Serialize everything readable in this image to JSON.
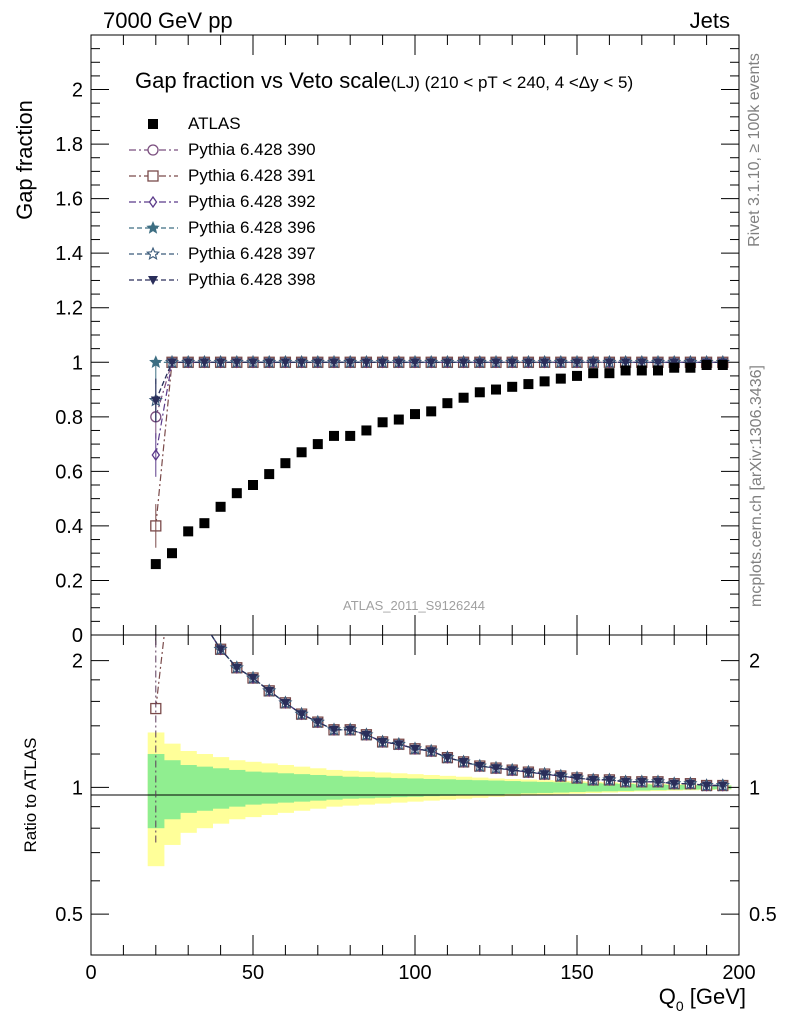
{
  "header": {
    "left": "7000 GeV pp",
    "right": "Jets"
  },
  "side": {
    "rivet": "Rivet 3.1.10, ≥ 100k events",
    "mcplots": "mcplots.cern.ch [arXiv:1306.3436]"
  },
  "watermark": "ATLAS_2011_S9126244",
  "chart_data": {
    "type": "scatter",
    "title": "Gap fraction vs Veto scale",
    "subtitle": "(LJ) (210 < pT < 240, 4 <Δy < 5)",
    "ylabel": "Gap fraction",
    "ratio_ylabel": "Ratio to ATLAS",
    "xlabel": "Q0 [GeV]",
    "xlim": [
      0,
      200
    ],
    "ylim": [
      0,
      2.2
    ],
    "ratio_ylim": [
      0.4,
      2.3
    ],
    "x_ticks": [
      "0",
      "50",
      "100",
      "150",
      "200"
    ],
    "y_ticks": [
      "0",
      "0.2",
      "0.4",
      "0.6",
      "0.8",
      "1",
      "1.2",
      "1.4",
      "1.6",
      "1.8",
      "2"
    ],
    "ratio_y_ticks": [
      "0.5",
      "1",
      "2"
    ],
    "legend_position": "top-left",
    "x": [
      20,
      25,
      30,
      35,
      40,
      45,
      50,
      55,
      60,
      65,
      70,
      75,
      80,
      85,
      90,
      95,
      100,
      105,
      110,
      115,
      120,
      125,
      130,
      135,
      140,
      145,
      150,
      155,
      160,
      165,
      170,
      175,
      180,
      185,
      190,
      195
    ],
    "data": {
      "name": "ATLAS",
      "values": [
        0.26,
        0.3,
        0.38,
        0.41,
        0.47,
        0.52,
        0.55,
        0.59,
        0.63,
        0.67,
        0.7,
        0.73,
        0.73,
        0.75,
        0.78,
        0.79,
        0.81,
        0.82,
        0.85,
        0.87,
        0.89,
        0.9,
        0.91,
        0.92,
        0.93,
        0.94,
        0.95,
        0.96,
        0.96,
        0.97,
        0.97,
        0.97,
        0.98,
        0.98,
        0.99,
        0.99
      ],
      "band_inner": [
        0.2,
        0.16,
        0.13,
        0.12,
        0.11,
        0.1,
        0.09,
        0.085,
        0.08,
        0.075,
        0.07,
        0.065,
        0.06,
        0.058,
        0.055,
        0.052,
        0.05,
        0.047,
        0.045,
        0.042,
        0.04,
        0.038,
        0.035,
        0.032,
        0.03,
        0.028,
        0.025,
        0.023,
        0.021,
        0.019,
        0.017,
        0.015,
        0.013,
        0.012,
        0.011,
        0.01
      ],
      "band_outer": [
        0.35,
        0.27,
        0.22,
        0.2,
        0.18,
        0.16,
        0.15,
        0.14,
        0.13,
        0.12,
        0.11,
        0.1,
        0.095,
        0.09,
        0.085,
        0.08,
        0.075,
        0.07,
        0.065,
        0.06,
        0.055,
        0.05,
        0.047,
        0.044,
        0.04,
        0.037,
        0.034,
        0.031,
        0.028,
        0.025,
        0.022,
        0.02,
        0.018,
        0.016,
        0.014,
        0.012
      ]
    },
    "series": [
      {
        "name": "Pythia 6.428 390",
        "color": "#7b4f7f",
        "marker": "circle-open",
        "dash": "dashdot",
        "values": [
          0.8,
          1,
          1,
          1,
          1,
          1,
          1,
          1,
          1,
          1,
          1,
          1,
          1,
          1,
          1,
          1,
          1,
          1,
          1,
          1,
          1,
          1,
          1,
          1,
          1,
          1,
          1,
          1,
          1,
          1,
          1,
          1,
          1,
          1,
          1,
          1
        ]
      },
      {
        "name": "Pythia 6.428 391",
        "color": "#7a4a4a",
        "marker": "square-open",
        "dash": "dashdot",
        "values": [
          0.4,
          1,
          1,
          1,
          1,
          1,
          1,
          1,
          1,
          1,
          1,
          1,
          1,
          1,
          1,
          1,
          1,
          1,
          1,
          1,
          1,
          1,
          1,
          1,
          1,
          1,
          1,
          1,
          1,
          1,
          1,
          1,
          1,
          1,
          1,
          1
        ]
      },
      {
        "name": "Pythia 6.428 392",
        "color": "#5b3a8a",
        "marker": "diamond-open",
        "dash": "dashdot",
        "values": [
          0.66,
          1,
          1,
          1,
          1,
          1,
          1,
          1,
          1,
          1,
          1,
          1,
          1,
          1,
          1,
          1,
          1,
          1,
          1,
          1,
          1,
          1,
          1,
          1,
          1,
          1,
          1,
          1,
          1,
          1,
          1,
          1,
          1,
          1,
          1,
          1
        ]
      },
      {
        "name": "Pythia 6.428 396",
        "color": "#3d6e82",
        "marker": "star-filled",
        "dash": "dashed",
        "values": [
          1,
          1,
          1,
          1,
          1,
          1,
          1,
          1,
          1,
          1,
          1,
          1,
          1,
          1,
          1,
          1,
          1,
          1,
          1,
          1,
          1,
          1,
          1,
          1,
          1,
          1,
          1,
          1,
          1,
          1,
          1,
          1,
          1,
          1,
          1,
          1
        ]
      },
      {
        "name": "Pythia 6.428 397",
        "color": "#3a5a7a",
        "marker": "star-open",
        "dash": "dashed",
        "values": [
          0.86,
          1,
          1,
          1,
          1,
          1,
          1,
          1,
          1,
          1,
          1,
          1,
          1,
          1,
          1,
          1,
          1,
          1,
          1,
          1,
          1,
          1,
          1,
          1,
          1,
          1,
          1,
          1,
          1,
          1,
          1,
          1,
          1,
          1,
          1,
          1
        ]
      },
      {
        "name": "Pythia 6.428 398",
        "color": "#2a2e5a",
        "marker": "triangle-down-filled",
        "dash": "dashed",
        "values": [
          0.86,
          1,
          1,
          1,
          1,
          1,
          1,
          1,
          1,
          1,
          1,
          1,
          1,
          1,
          1,
          1,
          1,
          1,
          1,
          1,
          1,
          1,
          1,
          1,
          1,
          1,
          1,
          1,
          1,
          1,
          1,
          1,
          1,
          1,
          1,
          1
        ]
      }
    ],
    "colors": {
      "band_inner": "#90ee90",
      "band_outer": "#ffff99",
      "data": "#000000"
    }
  }
}
